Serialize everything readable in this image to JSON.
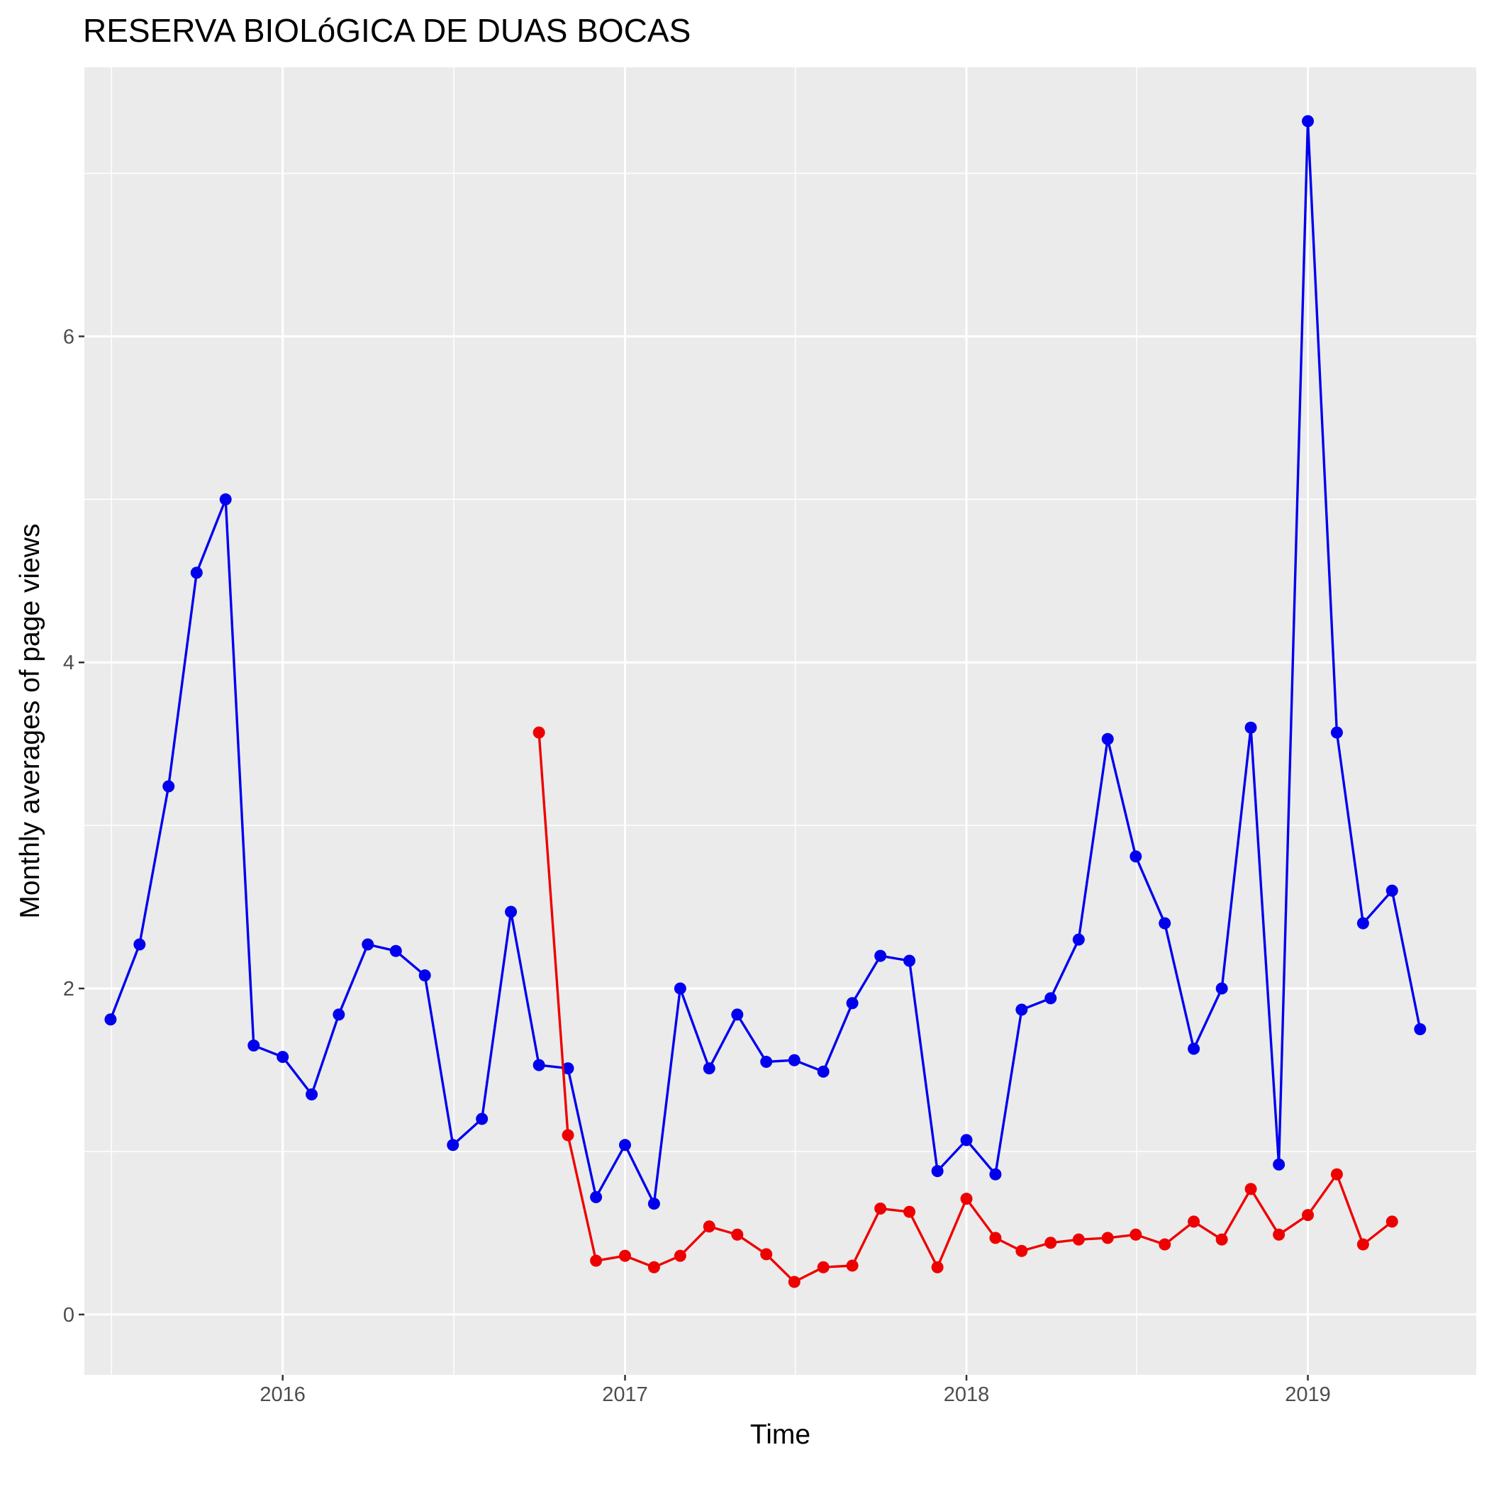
{
  "chart_data": {
    "type": "line",
    "title": "RESERVA BIOLóGICA DE DUAS BOCAS",
    "xlabel": "Time",
    "ylabel": "Monthly averages of page views",
    "xlim": [
      "2015-06-03",
      "2019-06-30"
    ],
    "ylim": [
      -0.37,
      7.65
    ],
    "x_ticks": [
      {
        "date": "2016-01-01",
        "label": "2016"
      },
      {
        "date": "2017-01-01",
        "label": "2017"
      },
      {
        "date": "2018-01-01",
        "label": "2018"
      },
      {
        "date": "2019-01-01",
        "label": "2019"
      }
    ],
    "y_ticks": [
      0,
      2,
      4,
      6
    ],
    "grid": true,
    "legend": "none",
    "panel_background": "#ebebeb",
    "grid_color": "#ffffff",
    "series": [
      {
        "color": "#0000ee",
        "points": [
          [
            "2015-07-01",
            1.81
          ],
          [
            "2015-08-01",
            2.27
          ],
          [
            "2015-09-01",
            3.24
          ],
          [
            "2015-10-01",
            4.55
          ],
          [
            "2015-11-01",
            5.0
          ],
          [
            "2015-12-01",
            1.65
          ],
          [
            "2016-01-01",
            1.58
          ],
          [
            "2016-02-01",
            1.35
          ],
          [
            "2016-03-01",
            1.84
          ],
          [
            "2016-04-01",
            2.27
          ],
          [
            "2016-05-01",
            2.23
          ],
          [
            "2016-06-01",
            2.08
          ],
          [
            "2016-07-01",
            1.04
          ],
          [
            "2016-08-01",
            1.2
          ],
          [
            "2016-09-01",
            2.47
          ],
          [
            "2016-10-01",
            1.53
          ],
          [
            "2016-11-01",
            1.51
          ],
          [
            "2016-12-01",
            0.72
          ],
          [
            "2017-01-01",
            1.04
          ],
          [
            "2017-02-01",
            0.68
          ],
          [
            "2017-03-01",
            2.0
          ],
          [
            "2017-04-01",
            1.51
          ],
          [
            "2017-05-01",
            1.84
          ],
          [
            "2017-06-01",
            1.55
          ],
          [
            "2017-07-01",
            1.56
          ],
          [
            "2017-08-01",
            1.49
          ],
          [
            "2017-09-01",
            1.91
          ],
          [
            "2017-10-01",
            2.2
          ],
          [
            "2017-11-01",
            2.17
          ],
          [
            "2017-12-01",
            0.88
          ],
          [
            "2018-01-01",
            1.07
          ],
          [
            "2018-02-01",
            0.86
          ],
          [
            "2018-03-01",
            1.87
          ],
          [
            "2018-04-01",
            1.94
          ],
          [
            "2018-05-01",
            2.3
          ],
          [
            "2018-06-01",
            3.53
          ],
          [
            "2018-07-01",
            2.81
          ],
          [
            "2018-08-01",
            2.4
          ],
          [
            "2018-09-01",
            1.63
          ],
          [
            "2018-10-01",
            2.0
          ],
          [
            "2018-11-01",
            3.6
          ],
          [
            "2018-12-01",
            0.92
          ],
          [
            "2019-01-01",
            7.32
          ],
          [
            "2019-02-01",
            3.57
          ],
          [
            "2019-03-01",
            2.4
          ],
          [
            "2019-04-01",
            2.6
          ],
          [
            "2019-05-01",
            1.75
          ]
        ]
      },
      {
        "color": "#ee0000",
        "points": [
          [
            "2016-10-01",
            3.57
          ],
          [
            "2016-11-01",
            1.1
          ],
          [
            "2016-12-01",
            0.33
          ],
          [
            "2017-01-01",
            0.36
          ],
          [
            "2017-02-01",
            0.29
          ],
          [
            "2017-03-01",
            0.36
          ],
          [
            "2017-04-01",
            0.54
          ],
          [
            "2017-05-01",
            0.49
          ],
          [
            "2017-06-01",
            0.37
          ],
          [
            "2017-07-01",
            0.2
          ],
          [
            "2017-08-01",
            0.29
          ],
          [
            "2017-09-01",
            0.3
          ],
          [
            "2017-10-01",
            0.65
          ],
          [
            "2017-11-01",
            0.63
          ],
          [
            "2017-12-01",
            0.29
          ],
          [
            "2018-01-01",
            0.71
          ],
          [
            "2018-02-01",
            0.47
          ],
          [
            "2018-03-01",
            0.39
          ],
          [
            "2018-04-01",
            0.44
          ],
          [
            "2018-05-01",
            0.46
          ],
          [
            "2018-06-01",
            0.47
          ],
          [
            "2018-07-01",
            0.49
          ],
          [
            "2018-08-01",
            0.43
          ],
          [
            "2018-09-01",
            0.57
          ],
          [
            "2018-10-01",
            0.46
          ],
          [
            "2018-11-01",
            0.77
          ],
          [
            "2018-12-01",
            0.49
          ],
          [
            "2019-01-01",
            0.61
          ],
          [
            "2019-02-01",
            0.86
          ],
          [
            "2019-03-01",
            0.43
          ],
          [
            "2019-04-01",
            0.57
          ]
        ]
      }
    ]
  }
}
